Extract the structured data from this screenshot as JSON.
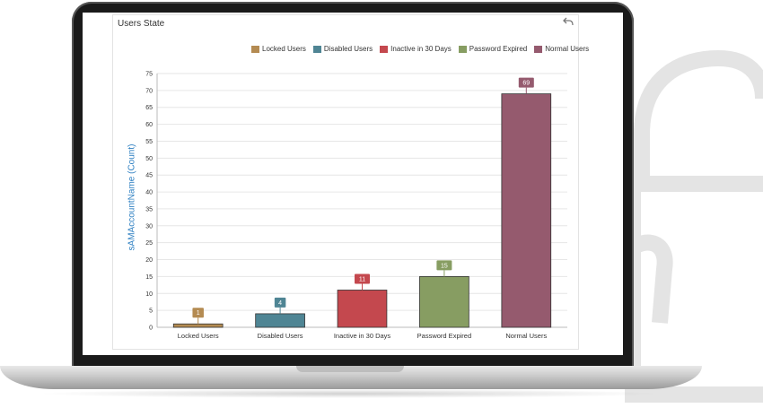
{
  "panel": {
    "title": "Users State"
  },
  "chart_data": {
    "type": "bar",
    "categories": [
      "Locked Users",
      "Disabled Users",
      "Inactive in 30 Days",
      "Password Expired",
      "Normal Users"
    ],
    "values": [
      1,
      4,
      11,
      15,
      69
    ],
    "colors": [
      "#b48b52",
      "#4f8594",
      "#c4484e",
      "#879d62",
      "#955a6e"
    ],
    "legend": [
      "Locked Users",
      "Disabled Users",
      "Inactive in 30 Days",
      "Password Expired",
      "Normal Users"
    ],
    "legend_position": "top-right",
    "ylabel": "sAMAccountName (Count)",
    "xlabel": "",
    "ylim": [
      0,
      75
    ],
    "yticks": [
      0,
      5,
      10,
      15,
      20,
      25,
      30,
      35,
      40,
      45,
      50,
      55,
      60,
      65,
      70,
      75
    ],
    "grid": true
  },
  "icons": {
    "undo": "undo-icon"
  }
}
